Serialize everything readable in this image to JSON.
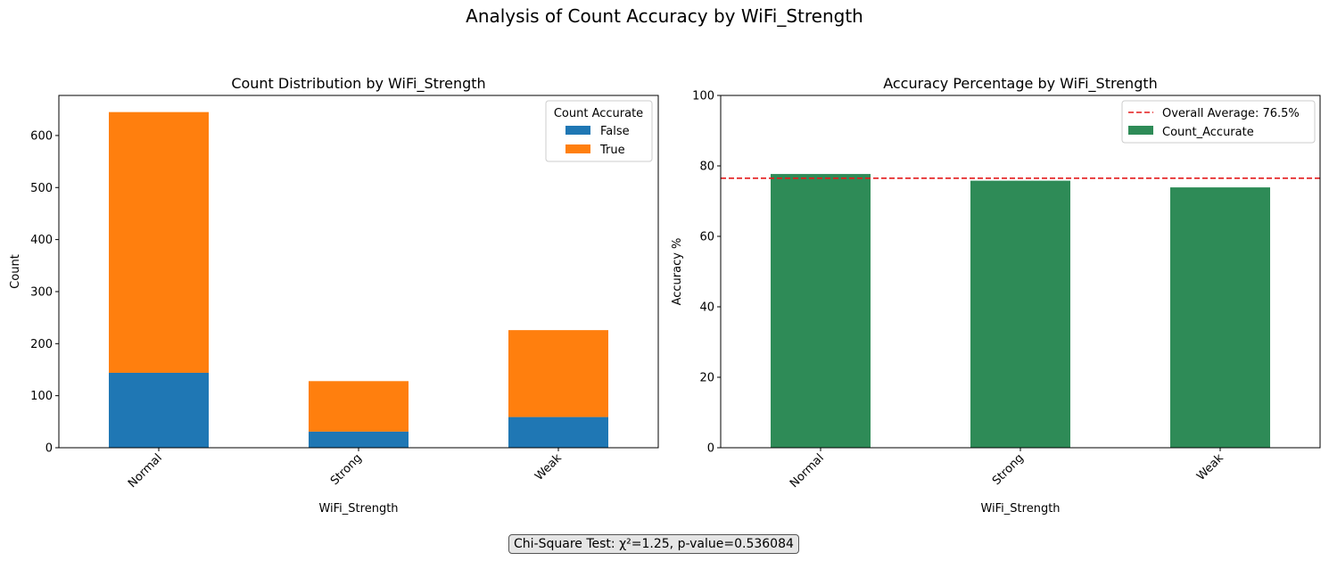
{
  "figure": {
    "suptitle": "Analysis of Count Accuracy by WiFi_Strength",
    "footnote": "Chi-Square Test: χ²=1.25, p-value=0.536084"
  },
  "colors": {
    "false": "#1f77b4",
    "true": "#ff7f0e",
    "accuracy_bar": "#2e8b57",
    "average_line": "#e41a1c"
  },
  "chart_data": [
    {
      "type": "bar",
      "stacked": true,
      "title": "Count Distribution by WiFi_Strength",
      "xlabel": "WiFi_Strength",
      "ylabel": "Count",
      "categories": [
        "Normal",
        "Strong",
        "Weak"
      ],
      "series": [
        {
          "name": "False",
          "values": [
            144,
            31,
            59
          ]
        },
        {
          "name": "True",
          "values": [
            501,
            97,
            167
          ]
        }
      ],
      "ylim": [
        0,
        677
      ],
      "yticks": [
        0,
        100,
        200,
        300,
        400,
        500,
        600
      ],
      "legend": {
        "title": "Count Accurate",
        "placement": "top-right"
      },
      "grid": false
    },
    {
      "type": "bar",
      "title": "Accuracy Percentage by WiFi_Strength",
      "xlabel": "WiFi_Strength",
      "ylabel": "Accuracy %",
      "categories": [
        "Normal",
        "Strong",
        "Weak"
      ],
      "series": [
        {
          "name": "Count_Accurate",
          "values": [
            77.7,
            75.8,
            73.9
          ]
        }
      ],
      "reference_line": {
        "label": "Overall Average: 76.5%",
        "value": 76.5
      },
      "ylim": [
        0,
        100
      ],
      "yticks": [
        0,
        20,
        40,
        60,
        80,
        100
      ],
      "legend": {
        "placement": "top-right"
      },
      "grid": false
    }
  ]
}
